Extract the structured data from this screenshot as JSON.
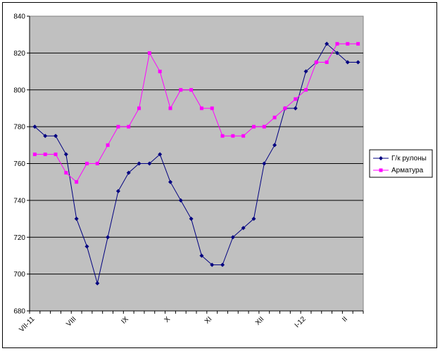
{
  "chart_data": {
    "type": "line",
    "title": "",
    "xlabel": "",
    "ylabel": "",
    "ylim": [
      680,
      840
    ],
    "yticks": [
      680,
      700,
      720,
      740,
      760,
      780,
      800,
      820,
      840
    ],
    "grid": "horizontal",
    "legend_position": "right",
    "plot_background": "#c0c0c0",
    "x_labels": [
      {
        "index": 0,
        "label": "VII-11"
      },
      {
        "index": 4,
        "label": "VIII"
      },
      {
        "index": 9,
        "label": "IX"
      },
      {
        "index": 13,
        "label": "X"
      },
      {
        "index": 17,
        "label": "XI"
      },
      {
        "index": 22,
        "label": "XII"
      },
      {
        "index": 26,
        "label": "I-12"
      },
      {
        "index": 30,
        "label": "II"
      }
    ],
    "n_points": 32,
    "series": [
      {
        "name": "Г/к рулоны",
        "color": "#000080",
        "marker": "diamond",
        "values": [
          780,
          775,
          775,
          765,
          730,
          715,
          695,
          720,
          745,
          755,
          760,
          760,
          765,
          750,
          740,
          730,
          710,
          705,
          705,
          720,
          725,
          730,
          760,
          770,
          790,
          790,
          810,
          815,
          825,
          820,
          815,
          815
        ]
      },
      {
        "name": "Арматура",
        "color": "#ff00ff",
        "marker": "square",
        "values": [
          765,
          765,
          765,
          755,
          750,
          760,
          760,
          770,
          780,
          780,
          790,
          820,
          810,
          790,
          800,
          800,
          790,
          790,
          775,
          775,
          775,
          780,
          780,
          785,
          790,
          795,
          800,
          815,
          815,
          825,
          825,
          825
        ]
      }
    ]
  }
}
